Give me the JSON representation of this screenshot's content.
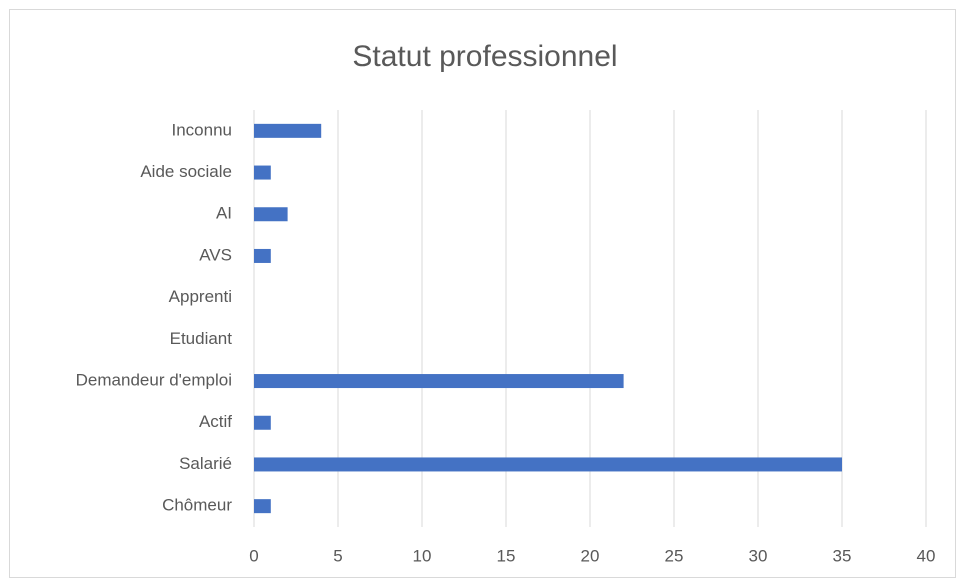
{
  "chart_data": {
    "type": "bar",
    "orientation": "horizontal",
    "title": "Statut professionnel",
    "categories": [
      "Chômeur",
      "Salarié",
      "Actif",
      "Demandeur d'emploi",
      "Etudiant",
      "Apprenti",
      "AVS",
      "AI",
      "Aide sociale",
      "Inconnu"
    ],
    "values": [
      1,
      35,
      1,
      22,
      0,
      0,
      1,
      2,
      1,
      4
    ],
    "color": "#4472c4",
    "xlim": [
      0,
      40
    ],
    "xticks": [
      0,
      5,
      10,
      15,
      20,
      25,
      30,
      35,
      40
    ],
    "grid": true
  }
}
